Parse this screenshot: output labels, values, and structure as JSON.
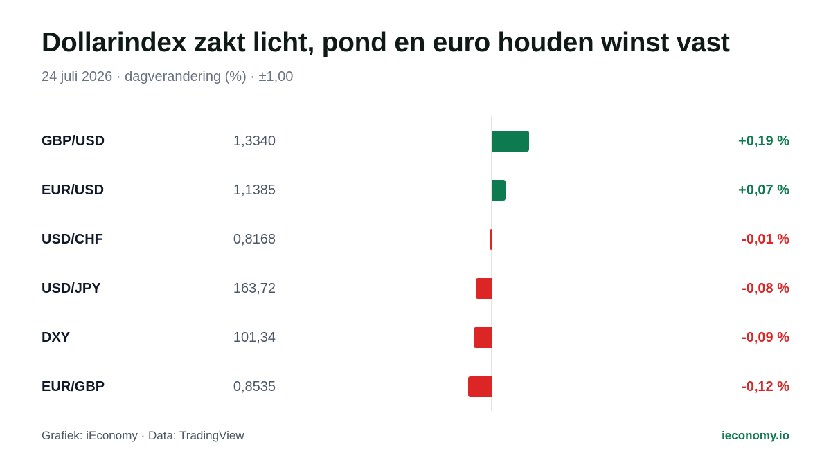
{
  "header": {
    "title": "Dollarindex zakt licht, pond en euro houden winst vast",
    "subtitle": "24 juli 2026 · dagverandering (%) · ±1,00"
  },
  "footer": {
    "source": "Grafiek: iEconomy · Data: TradingView",
    "brand": "ieconomy.io"
  },
  "colors": {
    "positive": "#0e7a50",
    "negative": "#dc2626"
  },
  "chart_data": {
    "type": "bar",
    "orientation": "horizontal",
    "unit": "%",
    "categories": [
      "GBP/USD",
      "EUR/USD",
      "USD/CHF",
      "USD/JPY",
      "DXY",
      "EUR/GBP"
    ],
    "prices": [
      "1,3340",
      "1,1385",
      "0,8168",
      "163,72",
      "101,34",
      "0,8535"
    ],
    "values": [
      0.19,
      0.07,
      -0.01,
      -0.08,
      -0.09,
      -0.12
    ],
    "value_labels": [
      "+0,19 %",
      "+0,07 %",
      "-0,01 %",
      "-0,08 %",
      "-0,09 %",
      "-0,12 %"
    ],
    "xlim": [
      -1.0,
      1.0
    ],
    "grid": false,
    "legend": "none"
  }
}
